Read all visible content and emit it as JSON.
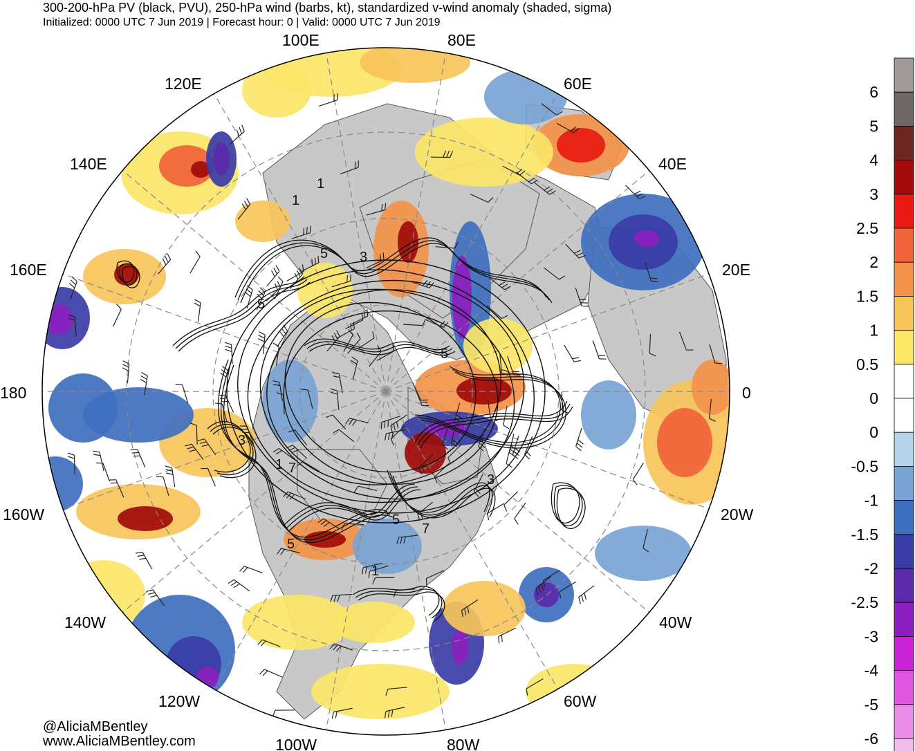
{
  "header": {
    "title": "300-200-hPa PV (black, PVU), 250-hPa wind (barbs, kt), standardized v-wind anomaly (shaded, sigma)",
    "subtitle": "Initialized: 0000 UTC 7 Jun 2019 | Forecast hour: 0 | Valid: 0000 UTC 7 Jun 2019"
  },
  "credits": {
    "handle": "@AliciaMBentley",
    "website": "www.AliciaMBentley.com"
  },
  "map": {
    "projection": "north-polar-stereographic",
    "longitude_labels": [
      "100E",
      "80E",
      "120E",
      "60E",
      "140E",
      "40E",
      "160E",
      "20E",
      "180",
      "0",
      "160W",
      "20W",
      "140W",
      "40W",
      "120W",
      "60W",
      "100W",
      "80W"
    ],
    "pv_contour_labels": [
      "1",
      "1",
      "5",
      "3",
      "5",
      "5",
      "3",
      "1",
      "7",
      "5",
      "5",
      "7",
      "3",
      "1"
    ],
    "colors": {
      "land": "#c8c8c8",
      "ocean": "#ffffff",
      "contour": "#111111",
      "graticule": "#888888"
    }
  },
  "colorbar": {
    "labels": [
      "6",
      "5",
      "4",
      "3",
      "2.5",
      "2",
      "1.5",
      "1",
      "0.5",
      "0",
      "0",
      "-0.5",
      "-1",
      "-1.5",
      "-2",
      "-2.5",
      "-3",
      "-4",
      "-5",
      "-6"
    ],
    "colors": [
      "#a39b9b",
      "#6f6767",
      "#6e2621",
      "#a10b0a",
      "#e81b14",
      "#f1633a",
      "#f3924a",
      "#f7c45a",
      "#fbe567",
      "#ffffff",
      "#ffffff",
      "#b4d2ea",
      "#7aa4d5",
      "#3f6fbf",
      "#3a3ca6",
      "#5b2aa9",
      "#8c1fbf",
      "#c823d4",
      "#df57e0",
      "#ea8be8",
      "#efbde9"
    ]
  }
}
